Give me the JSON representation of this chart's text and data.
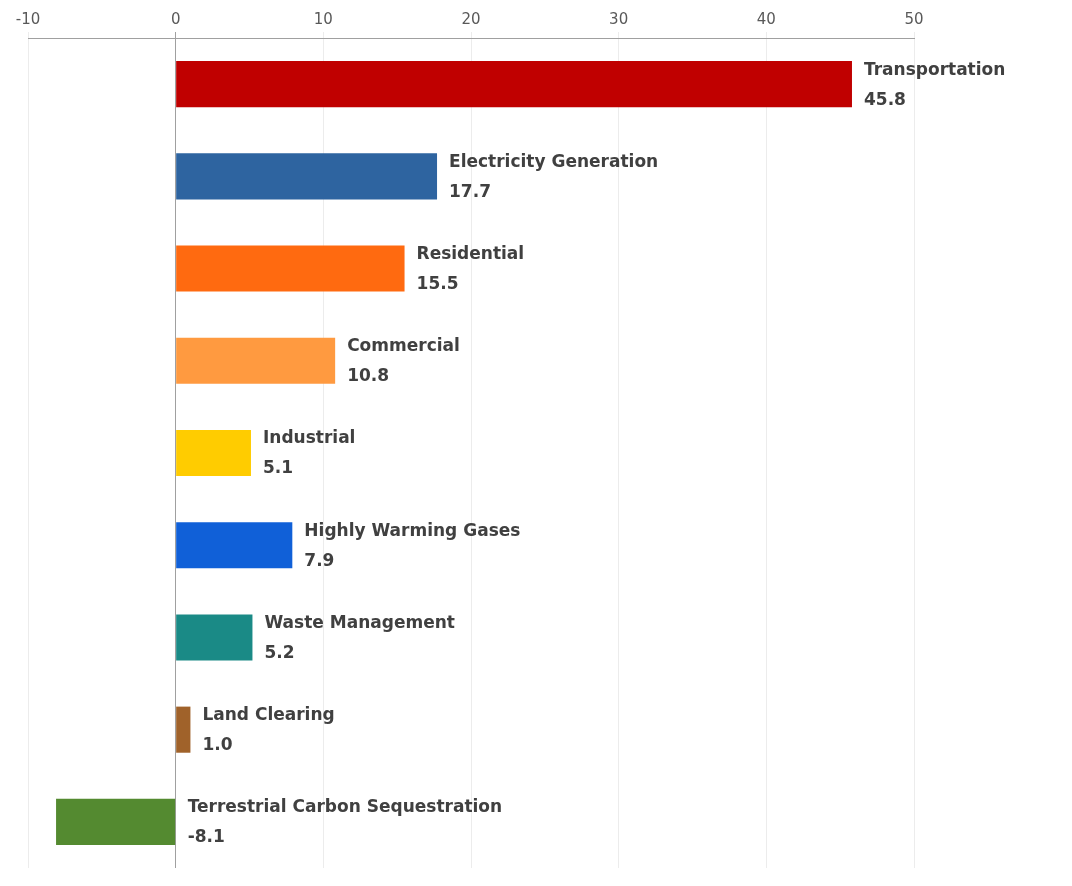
{
  "chart_data": {
    "type": "bar",
    "orientation": "horizontal",
    "categories": [
      "Transportation",
      "Electricity Generation",
      "Residential",
      "Commercial",
      "Industrial",
      "Highly Warming Gases",
      "Waste Management",
      "Land Clearing",
      "Terrestrial Carbon Sequestration"
    ],
    "values": [
      45.8,
      17.7,
      15.5,
      10.8,
      5.1,
      7.9,
      5.2,
      1.0,
      -8.1
    ],
    "colors": [
      "#c00000",
      "#2e64a0",
      "#ff6a10",
      "#ff9a40",
      "#ffcc00",
      "#1060d8",
      "#1a8a86",
      "#a0622a",
      "#548a30"
    ],
    "xlim": [
      -10,
      50
    ],
    "xticks": [
      -10,
      0,
      10,
      20,
      30,
      40,
      50
    ],
    "value_labels": [
      "45.8",
      "17.7",
      "15.5",
      "10.8",
      "5.1",
      "7.9",
      "5.2",
      "1.0",
      "-8.1"
    ],
    "grid": "x",
    "legend": false
  }
}
